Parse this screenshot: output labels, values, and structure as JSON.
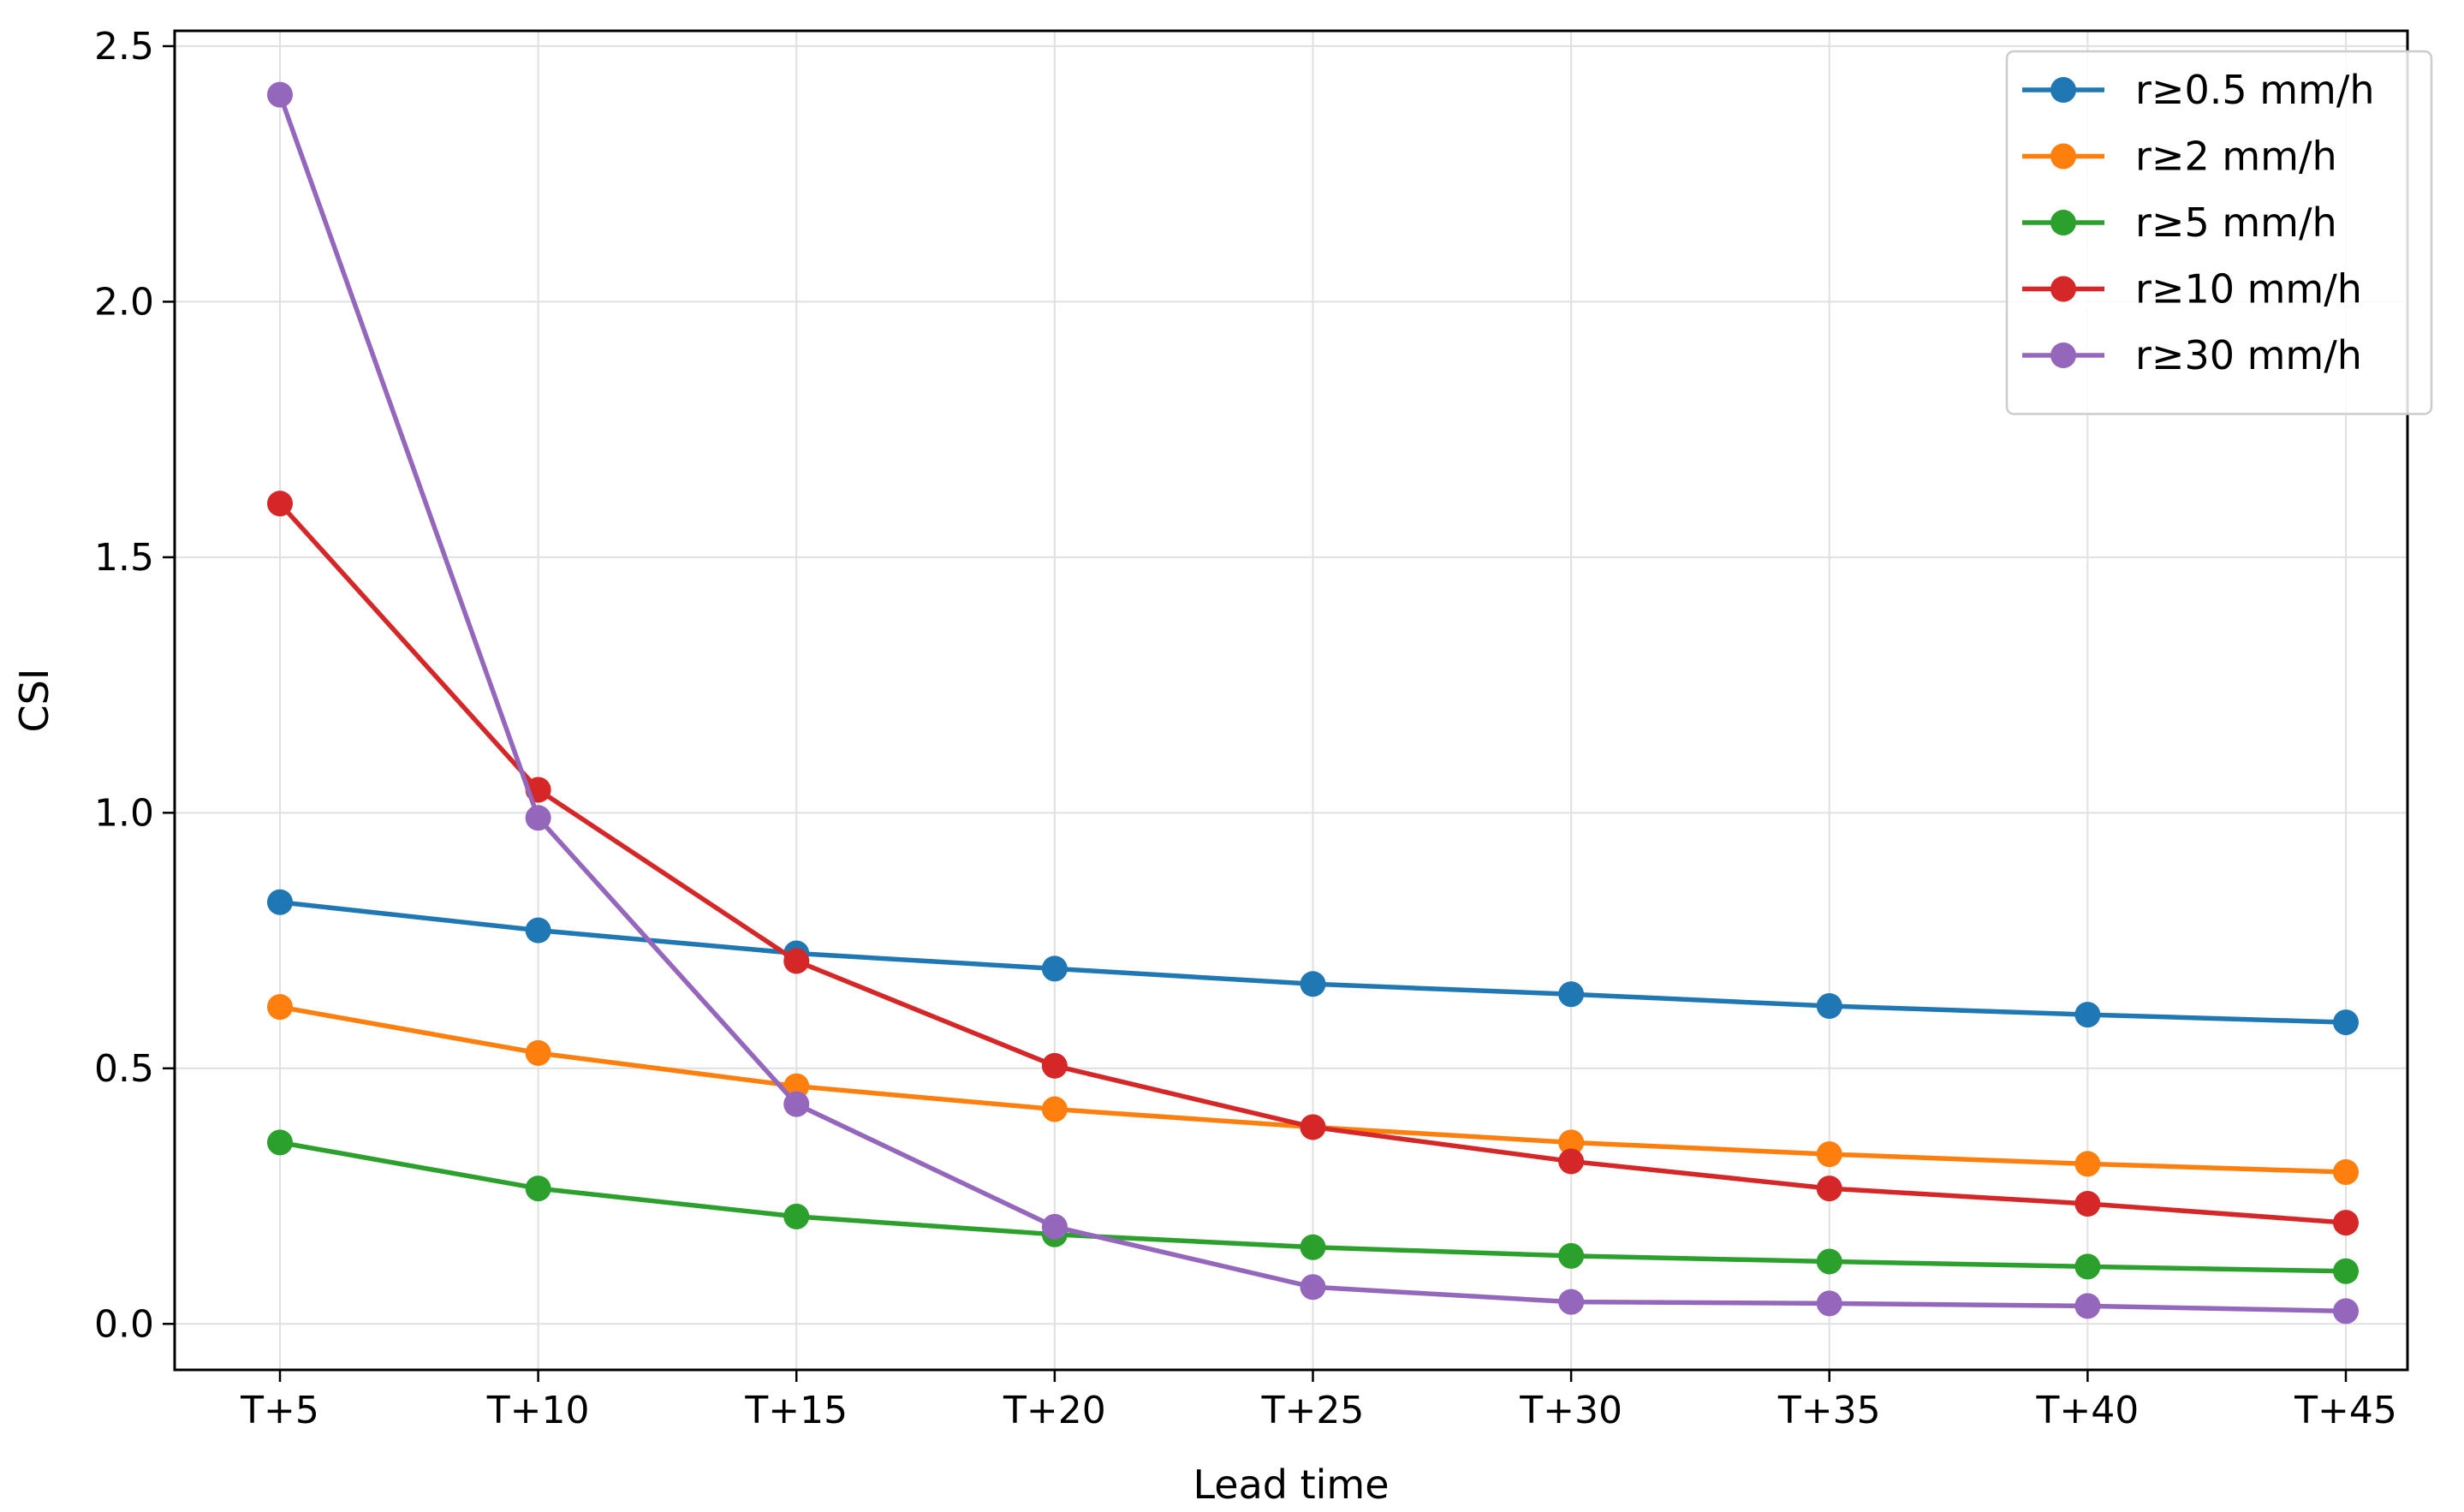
{
  "chart_data": {
    "type": "line",
    "title": "",
    "xlabel": "Lead time",
    "ylabel": "CSI",
    "categories": [
      "T+5",
      "T+10",
      "T+15",
      "T+20",
      "T+25",
      "T+30",
      "T+35",
      "T+40",
      "T+45"
    ],
    "ylim": [
      -0.09,
      2.53
    ],
    "yticks": [
      "0.0",
      "0.5",
      "1.0",
      "1.5",
      "2.0",
      "2.5"
    ],
    "grid": true,
    "legend_position": "top-right",
    "series": [
      {
        "name": "r≥0.5 mm/h",
        "color": "#1f77b4",
        "values": [
          0.825,
          0.77,
          0.725,
          0.695,
          0.665,
          0.645,
          0.622,
          0.605,
          0.59
        ]
      },
      {
        "name": "r≥2 mm/h",
        "color": "#ff7f0e",
        "values": [
          0.62,
          0.53,
          0.465,
          0.42,
          0.385,
          0.355,
          0.332,
          0.313,
          0.297
        ]
      },
      {
        "name": "r≥5 mm/h",
        "color": "#2ca02c",
        "values": [
          0.355,
          0.265,
          0.21,
          0.175,
          0.15,
          0.133,
          0.122,
          0.112,
          0.103
        ]
      },
      {
        "name": "r≥10 mm/h",
        "color": "#d62728",
        "values": [
          1.605,
          1.045,
          0.71,
          0.505,
          0.385,
          0.318,
          0.265,
          0.235,
          0.198
        ]
      },
      {
        "name": "r≥30 mm/h",
        "color": "#9467bd",
        "values": [
          2.405,
          0.99,
          0.43,
          0.19,
          0.072,
          0.043,
          0.04,
          0.035,
          0.025
        ]
      }
    ]
  }
}
